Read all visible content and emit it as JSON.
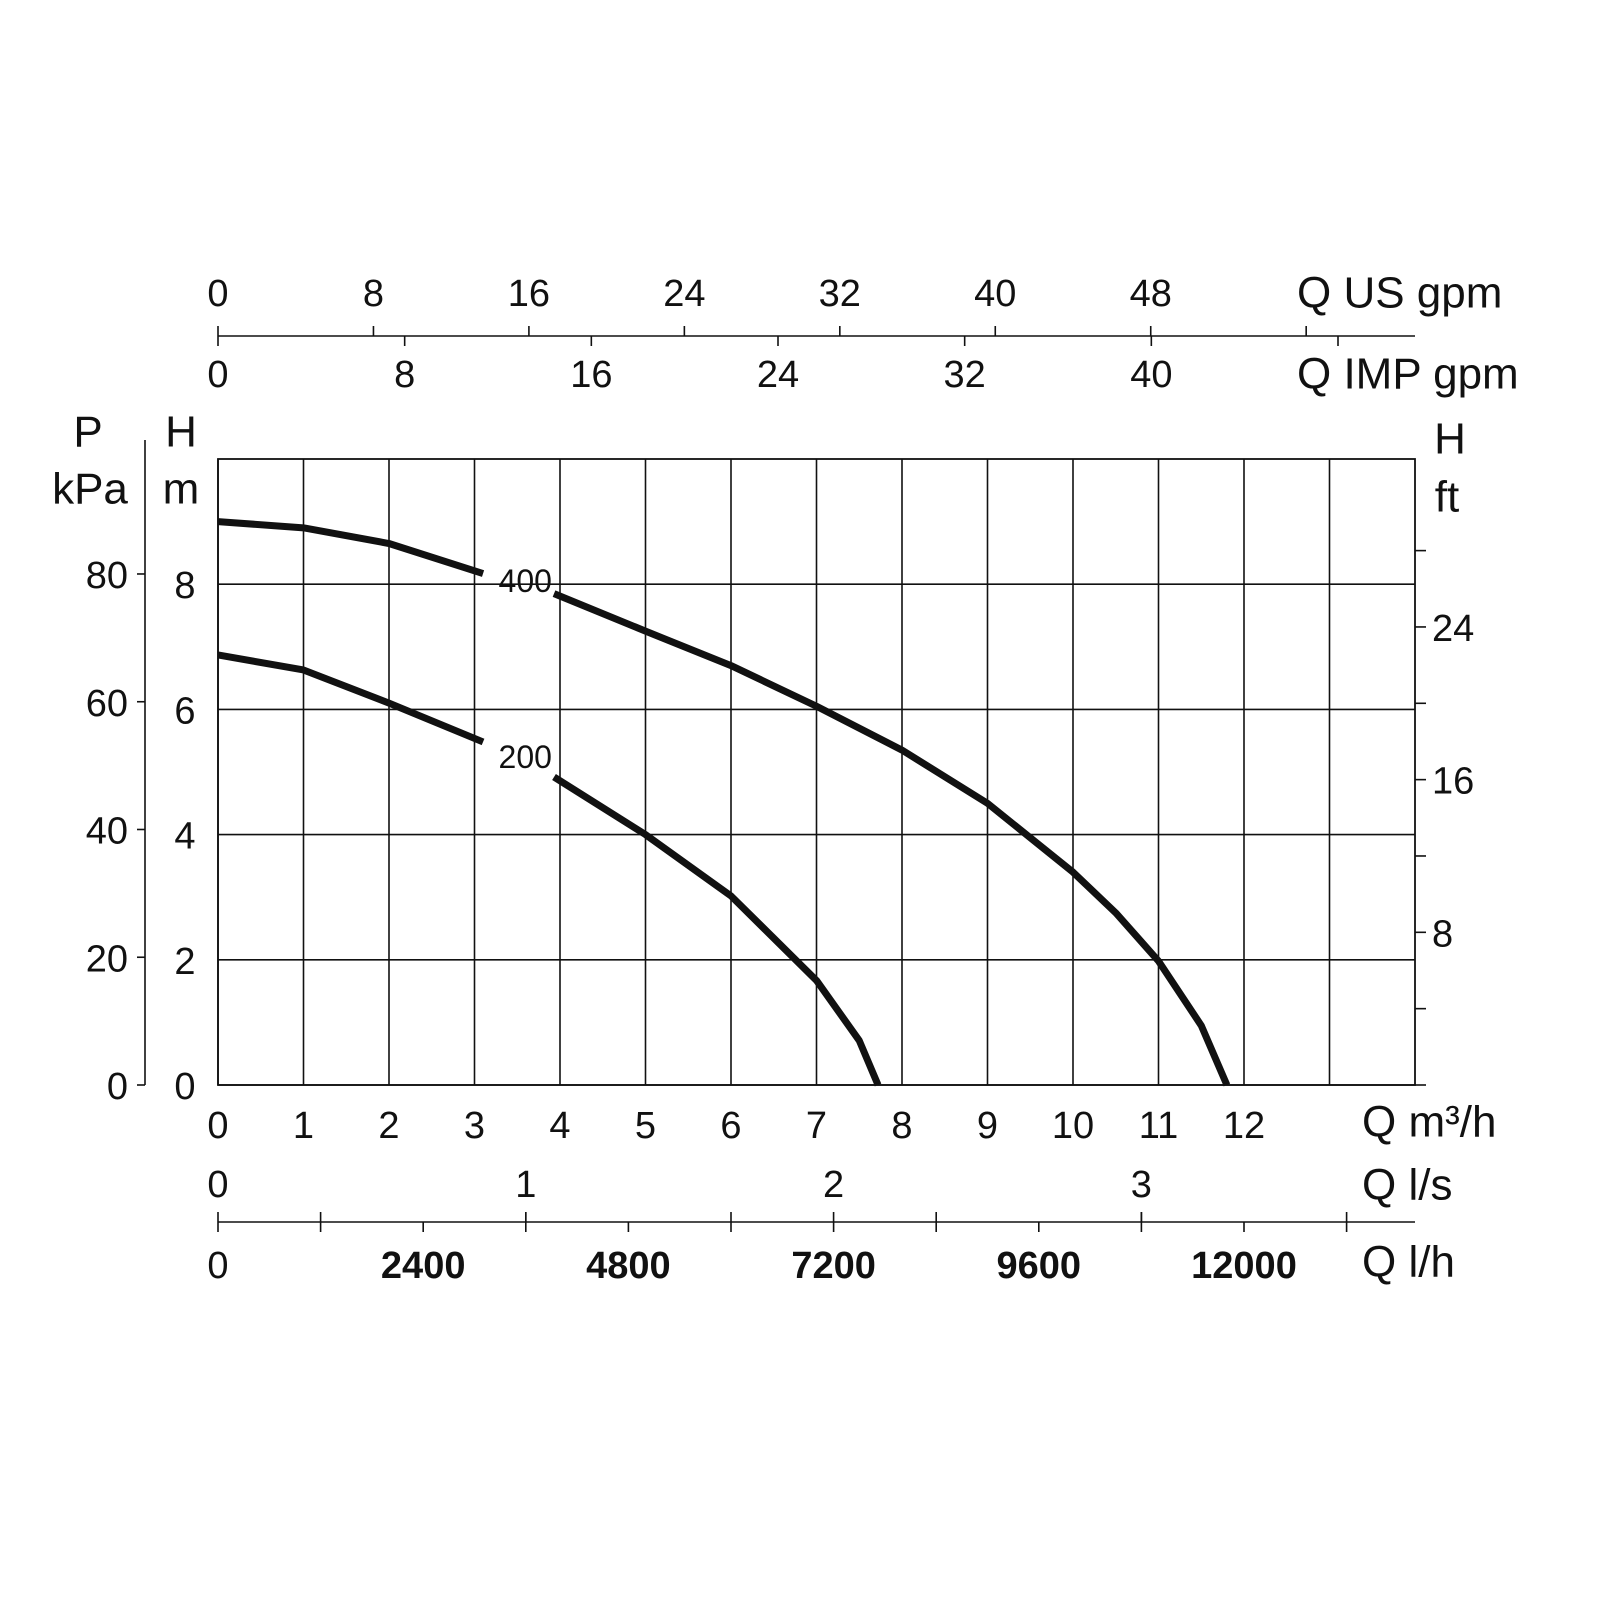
{
  "chart_data": {
    "type": "line",
    "xlim": [
      0,
      14
    ],
    "xticks": [
      0,
      1,
      2,
      3,
      4,
      5,
      6,
      7,
      8,
      9,
      10,
      11,
      12
    ],
    "x_minor_grid": [
      13
    ],
    "x_label": "Q m³/h",
    "ylim": [
      0,
      10
    ],
    "yticks": [
      0,
      2,
      4,
      6,
      8
    ],
    "grid": true,
    "y_label": "H",
    "y_unit": "m",
    "y2_label": "P",
    "y2_unit": "kPa",
    "y2lim": [
      0,
      98
    ],
    "y2ticks": [
      0,
      20,
      40,
      60,
      80
    ],
    "y3_label": "H",
    "y3_unit": "ft",
    "y3lim": [
      0,
      32.8
    ],
    "y3ticks": [
      8,
      16,
      24
    ],
    "y3_minor_ticks": [
      0,
      4,
      12,
      20,
      28
    ],
    "top_axes": [
      {
        "label": "Q US gpm",
        "lim": [
          0,
          61.6
        ],
        "ticks": [
          0,
          8,
          16,
          24,
          32,
          40,
          48
        ],
        "minor_ticks": [
          56
        ]
      },
      {
        "label": "Q IMP gpm",
        "lim": [
          0,
          51.3
        ],
        "ticks": [
          0,
          8,
          16,
          24,
          32,
          40
        ],
        "minor_ticks": [
          48
        ]
      }
    ],
    "bottom_axes": [
      {
        "label": "Q l/s",
        "lim": [
          0,
          3.889
        ],
        "ticks": [
          0,
          1,
          2,
          3
        ]
      },
      {
        "label": "Q l/h",
        "lim": [
          0,
          14000
        ],
        "ticks": [
          0,
          2400,
          4800,
          7200,
          9600,
          12000
        ],
        "minor_ticks": [
          1200,
          3600,
          6000,
          8400,
          10800,
          13200
        ]
      }
    ],
    "series": [
      {
        "name": "400",
        "color": "#111111",
        "x": [
          0,
          1,
          2,
          3.1,
          3.5,
          3.93,
          5,
          6,
          7,
          8,
          9,
          10,
          10.5,
          11,
          11.5,
          11.8
        ],
        "values": [
          9.0,
          8.9,
          8.65,
          8.17,
          null,
          7.85,
          7.25,
          6.7,
          6.05,
          5.35,
          4.5,
          3.4,
          2.75,
          1.98,
          0.95,
          0
        ]
      },
      {
        "name": "200",
        "color": "#111111",
        "x": [
          0,
          1,
          2,
          3.1,
          3.5,
          3.93,
          5,
          6,
          7,
          7.5,
          7.72
        ],
        "values": [
          6.87,
          6.63,
          6.1,
          5.48,
          null,
          4.92,
          4.0,
          3.02,
          1.67,
          0.71,
          0
        ]
      }
    ]
  }
}
